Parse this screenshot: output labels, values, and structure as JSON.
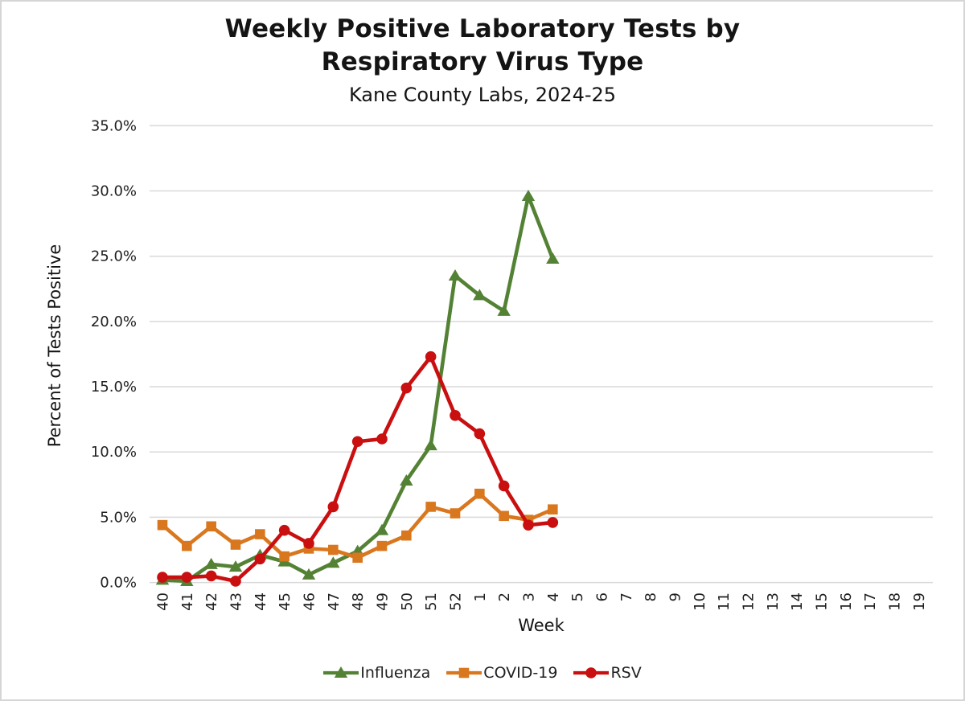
{
  "chart_data": {
    "type": "line",
    "title_line1": "Weekly Positive Laboratory Tests by",
    "title_line2": "Respiratory Virus Type",
    "subtitle": "Kane County Labs, 2024-25",
    "xlabel": "Week",
    "ylabel": "Percent of Tests Positive",
    "ylim": [
      0,
      35
    ],
    "y_tick_values": [
      0,
      5,
      10,
      15,
      20,
      25,
      30,
      35
    ],
    "y_tick_labels": [
      "0.0%",
      "5.0%",
      "10.0%",
      "15.0%",
      "20.0%",
      "25.0%",
      "30.0%",
      "35.0%"
    ],
    "grid": "horizontal-only",
    "legend_position": "bottom-center",
    "x_tick_rotation_deg": -90,
    "categories": [
      "40",
      "41",
      "42",
      "43",
      "44",
      "45",
      "46",
      "47",
      "48",
      "49",
      "50",
      "51",
      "52",
      "1",
      "2",
      "3",
      "4",
      "5",
      "6",
      "7",
      "8",
      "9",
      "10",
      "11",
      "12",
      "13",
      "14",
      "15",
      "16",
      "17",
      "18",
      "19"
    ],
    "series": [
      {
        "name": "Influenza",
        "color": "#548235",
        "marker": "triangle",
        "values": [
          0.2,
          0.1,
          1.4,
          1.2,
          2.1,
          1.6,
          0.6,
          1.5,
          2.4,
          4.0,
          7.8,
          10.5,
          23.5,
          22.0,
          20.8,
          29.6,
          24.8,
          null,
          null,
          null,
          null,
          null,
          null,
          null,
          null,
          null,
          null,
          null,
          null,
          null,
          null,
          null
        ]
      },
      {
        "name": "COVID-19",
        "color": "#D9771F",
        "marker": "square",
        "values": [
          4.4,
          2.8,
          4.3,
          2.9,
          3.7,
          2.0,
          2.6,
          2.5,
          1.9,
          2.8,
          3.6,
          5.8,
          5.3,
          6.8,
          5.1,
          4.8,
          5.6,
          null,
          null,
          null,
          null,
          null,
          null,
          null,
          null,
          null,
          null,
          null,
          null,
          null,
          null,
          null
        ]
      },
      {
        "name": "RSV",
        "color": "#C90F0F",
        "marker": "circle",
        "values": [
          0.4,
          0.4,
          0.5,
          0.1,
          1.8,
          4.0,
          3.0,
          5.8,
          10.8,
          11.0,
          14.9,
          17.3,
          12.8,
          11.4,
          7.4,
          4.4,
          4.6,
          null,
          null,
          null,
          null,
          null,
          null,
          null,
          null,
          null,
          null,
          null,
          null,
          null,
          null,
          null
        ]
      }
    ]
  }
}
